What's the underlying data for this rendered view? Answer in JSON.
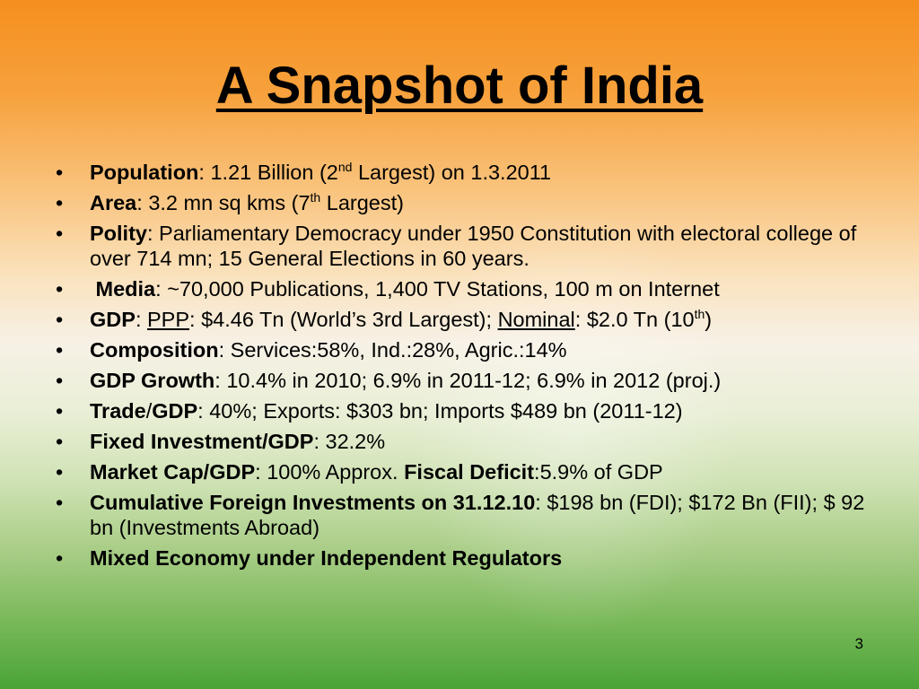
{
  "title": "A Snapshot of India",
  "bullet_char": "•",
  "items": {
    "population": {
      "label": "Population",
      "t1": ": 1.21 Billion (2",
      "sup": "nd",
      "t2": " Largest) on 1.3.2011"
    },
    "area": {
      "label": "Area",
      "t1": ": 3.2 mn sq kms (7",
      "sup": "th",
      "t2": " Largest)"
    },
    "polity": {
      "label": "Polity",
      "t1": ":  Parliamentary Democracy under 1950 Constitution with electoral college of  over 714 mn; 15 General Elections in 60 years."
    },
    "media": {
      "label": "Media",
      "t1": ": ~70,000 Publications, 1,400 TV Stations, 100 m on Internet"
    },
    "gdp": {
      "label": "GDP",
      "sep": ": ",
      "ppp": "PPP",
      "t1": ": $4.46 Tn (World’s 3rd Largest); ",
      "nominal": "Nominal",
      "t2": ": $2.0 Tn (10",
      "sup": "th",
      "t3": ")"
    },
    "composition": {
      "label": "Composition",
      "t1": ": Services:58%, Ind.:28%, Agric.:14%"
    },
    "gdp_growth": {
      "label": "GDP Growth",
      "t1": ": 10.4% in 2010; 6.9% in 2011-12; 6.9% in 2012 (proj.)"
    },
    "trade": {
      "label": "Trade",
      "slash": "/",
      "label2": "GDP",
      "t1": ": 40%; Exports: $303 bn; Imports $489 bn (2011-12)"
    },
    "fixed_investment": {
      "label": "Fixed Investment/GDP",
      "t1": ": 32.2%"
    },
    "market_cap": {
      "label": "Market Cap/GDP",
      "t1": ": 100% Approx. ",
      "label2": "Fiscal Deficit",
      "t2": ":5.9% of GDP"
    },
    "cumulative": {
      "label": "Cumulative Foreign Investments on 31.12.10",
      "t1": ": $198 bn (FDI); $172 Bn (FII); $ 92 bn (Investments Abroad)"
    },
    "mixed": {
      "label": "Mixed Economy under Independent Regulators"
    }
  },
  "page_number": "3"
}
